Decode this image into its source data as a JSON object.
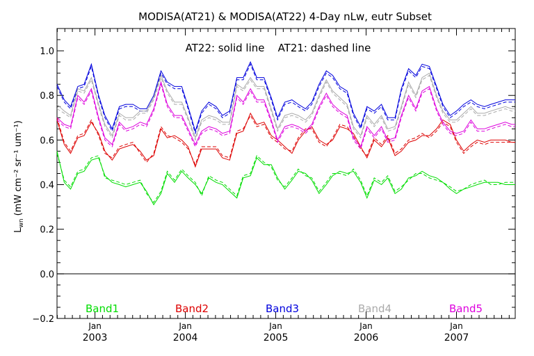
{
  "chart_data": {
    "type": "line",
    "title": "MODISA(AT21) & MODISA(AT22) 4-Day nLw, eutr Subset",
    "annotation": "AT22: solid line    AT21: dashed line",
    "ylabel_main": "L",
    "ylabel_sub": "wn",
    "ylabel_units": "(mW cm",
    "ylabel_units_full": "(mW cm⁻² sr⁻¹ um⁻¹)",
    "ylim": [
      -0.2,
      1.1
    ],
    "yticks": [
      "−0.2",
      "0.0",
      "0.2",
      "0.4",
      "0.6",
      "0.8",
      "1.0"
    ],
    "yticks_values": [
      -0.2,
      0.0,
      0.2,
      0.4,
      0.6,
      0.8,
      1.0
    ],
    "xlim": [
      2002.58,
      2007.65
    ],
    "xticks_month": [
      "Jan",
      "Jan",
      "Jan",
      "Jan",
      "Jan"
    ],
    "xticks_year": [
      "2003",
      "2004",
      "2005",
      "2006",
      "2007"
    ],
    "xticks_values": [
      2003.0,
      2004.0,
      2005.0,
      2006.0,
      2007.0
    ],
    "zero_line": true,
    "grid": false,
    "x": [
      2002.58,
      2002.66,
      2002.73,
      2002.81,
      2002.88,
      2002.96,
      2003.04,
      2003.11,
      2003.19,
      2003.27,
      2003.34,
      2003.42,
      2003.5,
      2003.57,
      2003.65,
      2003.73,
      2003.8,
      2003.88,
      2003.96,
      2004.03,
      2004.11,
      2004.18,
      2004.26,
      2004.34,
      2004.41,
      2004.49,
      2004.57,
      2004.64,
      2004.72,
      2004.79,
      2004.87,
      2004.95,
      2005.02,
      2005.1,
      2005.18,
      2005.25,
      2005.33,
      2005.4,
      2005.48,
      2005.56,
      2005.63,
      2005.71,
      2005.79,
      2005.86,
      2005.94,
      2006.01,
      2006.09,
      2006.17,
      2006.24,
      2006.32,
      2006.39,
      2006.47,
      2006.55,
      2006.62,
      2006.7,
      2006.78,
      2006.85,
      2006.93,
      2007.0,
      2007.08,
      2007.16,
      2007.23,
      2007.31,
      2007.38,
      2007.46,
      2007.54,
      2007.61,
      2007.65
    ],
    "series": [
      {
        "name": "Band1",
        "color": "#00dd00",
        "values_at22": [
          0.55,
          0.41,
          0.38,
          0.45,
          0.46,
          0.51,
          0.52,
          0.44,
          0.41,
          0.4,
          0.39,
          0.4,
          0.41,
          0.37,
          0.31,
          0.36,
          0.45,
          0.41,
          0.46,
          0.43,
          0.4,
          0.36,
          0.43,
          0.41,
          0.4,
          0.37,
          0.34,
          0.43,
          0.44,
          0.52,
          0.49,
          0.49,
          0.43,
          0.38,
          0.42,
          0.46,
          0.45,
          0.42,
          0.36,
          0.4,
          0.44,
          0.46,
          0.45,
          0.46,
          0.41,
          0.34,
          0.42,
          0.4,
          0.43,
          0.36,
          0.38,
          0.43,
          0.44,
          0.46,
          0.44,
          0.43,
          0.41,
          0.38,
          0.36,
          0.38,
          0.39,
          0.4,
          0.41,
          0.41,
          0.41,
          0.4,
          0.4,
          0.4
        ],
        "values_at21": [
          0.54,
          0.42,
          0.39,
          0.46,
          0.47,
          0.52,
          0.53,
          0.43,
          0.42,
          0.41,
          0.4,
          0.41,
          0.42,
          0.36,
          0.32,
          0.37,
          0.46,
          0.42,
          0.47,
          0.44,
          0.41,
          0.35,
          0.44,
          0.42,
          0.41,
          0.38,
          0.35,
          0.44,
          0.45,
          0.53,
          0.5,
          0.48,
          0.42,
          0.39,
          0.43,
          0.47,
          0.44,
          0.43,
          0.37,
          0.41,
          0.45,
          0.45,
          0.44,
          0.47,
          0.42,
          0.35,
          0.43,
          0.41,
          0.44,
          0.37,
          0.39,
          0.42,
          0.45,
          0.45,
          0.43,
          0.42,
          0.41,
          0.39,
          0.37,
          0.38,
          0.4,
          0.41,
          0.42,
          0.4,
          0.4,
          0.41,
          0.41,
          0.41
        ]
      },
      {
        "name": "Band2",
        "color": "#dd0000",
        "values_at22": [
          0.69,
          0.58,
          0.54,
          0.61,
          0.62,
          0.68,
          0.63,
          0.55,
          0.51,
          0.56,
          0.57,
          0.58,
          0.55,
          0.51,
          0.53,
          0.65,
          0.61,
          0.62,
          0.6,
          0.57,
          0.48,
          0.56,
          0.56,
          0.56,
          0.52,
          0.51,
          0.63,
          0.64,
          0.72,
          0.67,
          0.68,
          0.62,
          0.6,
          0.57,
          0.54,
          0.6,
          0.64,
          0.66,
          0.6,
          0.58,
          0.6,
          0.66,
          0.65,
          0.63,
          0.57,
          0.52,
          0.6,
          0.57,
          0.61,
          0.53,
          0.55,
          0.59,
          0.6,
          0.62,
          0.62,
          0.65,
          0.69,
          0.67,
          0.6,
          0.55,
          0.58,
          0.6,
          0.59,
          0.6,
          0.6,
          0.6,
          0.59,
          0.59
        ],
        "values_at21": [
          0.7,
          0.59,
          0.55,
          0.62,
          0.63,
          0.69,
          0.62,
          0.54,
          0.52,
          0.57,
          0.58,
          0.59,
          0.54,
          0.5,
          0.54,
          0.66,
          0.62,
          0.61,
          0.59,
          0.56,
          0.49,
          0.57,
          0.57,
          0.57,
          0.53,
          0.52,
          0.64,
          0.65,
          0.71,
          0.66,
          0.67,
          0.61,
          0.59,
          0.56,
          0.55,
          0.61,
          0.65,
          0.65,
          0.59,
          0.57,
          0.61,
          0.67,
          0.66,
          0.62,
          0.56,
          0.53,
          0.61,
          0.58,
          0.62,
          0.54,
          0.56,
          0.6,
          0.61,
          0.63,
          0.61,
          0.64,
          0.68,
          0.66,
          0.59,
          0.54,
          0.57,
          0.59,
          0.58,
          0.59,
          0.59,
          0.59,
          0.59,
          0.59
        ]
      },
      {
        "name": "Band3",
        "color": "#0000dd",
        "values_at22": [
          0.85,
          0.78,
          0.75,
          0.84,
          0.85,
          0.94,
          0.8,
          0.71,
          0.65,
          0.75,
          0.76,
          0.76,
          0.74,
          0.74,
          0.8,
          0.91,
          0.86,
          0.84,
          0.84,
          0.75,
          0.64,
          0.73,
          0.77,
          0.75,
          0.71,
          0.73,
          0.88,
          0.88,
          0.95,
          0.88,
          0.88,
          0.79,
          0.7,
          0.77,
          0.78,
          0.76,
          0.74,
          0.77,
          0.85,
          0.91,
          0.89,
          0.84,
          0.82,
          0.72,
          0.66,
          0.75,
          0.73,
          0.76,
          0.7,
          0.7,
          0.83,
          0.92,
          0.89,
          0.94,
          0.93,
          0.84,
          0.76,
          0.71,
          0.73,
          0.76,
          0.78,
          0.76,
          0.75,
          0.76,
          0.77,
          0.78,
          0.78,
          0.78
        ],
        "values_at21": [
          0.84,
          0.77,
          0.74,
          0.83,
          0.84,
          0.93,
          0.79,
          0.7,
          0.64,
          0.74,
          0.75,
          0.75,
          0.73,
          0.73,
          0.79,
          0.9,
          0.85,
          0.83,
          0.83,
          0.74,
          0.63,
          0.72,
          0.76,
          0.74,
          0.7,
          0.72,
          0.87,
          0.87,
          0.94,
          0.87,
          0.87,
          0.78,
          0.69,
          0.76,
          0.77,
          0.75,
          0.73,
          0.76,
          0.84,
          0.9,
          0.88,
          0.83,
          0.81,
          0.71,
          0.65,
          0.74,
          0.72,
          0.75,
          0.69,
          0.69,
          0.82,
          0.91,
          0.88,
          0.93,
          0.92,
          0.83,
          0.75,
          0.7,
          0.72,
          0.75,
          0.77,
          0.75,
          0.74,
          0.75,
          0.76,
          0.77,
          0.77,
          0.77
        ]
      },
      {
        "name": "Band4",
        "color": "#aaaaaa",
        "values_at22": [
          0.76,
          0.73,
          0.71,
          0.83,
          0.82,
          0.88,
          0.76,
          0.67,
          0.62,
          0.72,
          0.7,
          0.7,
          0.73,
          0.73,
          0.79,
          0.89,
          0.82,
          0.77,
          0.77,
          0.7,
          0.61,
          0.69,
          0.71,
          0.7,
          0.68,
          0.68,
          0.85,
          0.83,
          0.88,
          0.84,
          0.84,
          0.74,
          0.65,
          0.71,
          0.72,
          0.71,
          0.69,
          0.72,
          0.8,
          0.87,
          0.82,
          0.79,
          0.76,
          0.66,
          0.62,
          0.71,
          0.67,
          0.71,
          0.65,
          0.66,
          0.75,
          0.86,
          0.8,
          0.88,
          0.9,
          0.8,
          0.73,
          0.69,
          0.69,
          0.72,
          0.75,
          0.72,
          0.72,
          0.73,
          0.74,
          0.75,
          0.74,
          0.74
        ],
        "values_at21": [
          0.74,
          0.72,
          0.7,
          0.82,
          0.81,
          0.87,
          0.75,
          0.66,
          0.61,
          0.71,
          0.69,
          0.69,
          0.72,
          0.72,
          0.78,
          0.88,
          0.81,
          0.76,
          0.76,
          0.69,
          0.6,
          0.68,
          0.7,
          0.69,
          0.67,
          0.67,
          0.84,
          0.82,
          0.87,
          0.83,
          0.83,
          0.73,
          0.64,
          0.7,
          0.71,
          0.7,
          0.68,
          0.71,
          0.79,
          0.86,
          0.81,
          0.78,
          0.75,
          0.65,
          0.61,
          0.7,
          0.66,
          0.7,
          0.64,
          0.65,
          0.74,
          0.85,
          0.79,
          0.87,
          0.89,
          0.79,
          0.72,
          0.68,
          0.68,
          0.71,
          0.74,
          0.71,
          0.71,
          0.72,
          0.73,
          0.74,
          0.73,
          0.73
        ]
      },
      {
        "name": "Band5",
        "color": "#dd00dd",
        "values_at22": [
          0.7,
          0.67,
          0.66,
          0.8,
          0.77,
          0.83,
          0.7,
          0.61,
          0.58,
          0.68,
          0.65,
          0.66,
          0.68,
          0.67,
          0.74,
          0.86,
          0.76,
          0.71,
          0.71,
          0.65,
          0.58,
          0.64,
          0.66,
          0.65,
          0.63,
          0.64,
          0.8,
          0.77,
          0.83,
          0.78,
          0.78,
          0.69,
          0.6,
          0.66,
          0.67,
          0.66,
          0.64,
          0.67,
          0.75,
          0.81,
          0.76,
          0.73,
          0.71,
          0.61,
          0.57,
          0.66,
          0.62,
          0.66,
          0.6,
          0.61,
          0.71,
          0.8,
          0.74,
          0.82,
          0.84,
          0.74,
          0.68,
          0.64,
          0.63,
          0.64,
          0.69,
          0.65,
          0.65,
          0.66,
          0.67,
          0.68,
          0.67,
          0.67
        ],
        "values_at21": [
          0.69,
          0.66,
          0.65,
          0.79,
          0.76,
          0.82,
          0.69,
          0.6,
          0.57,
          0.67,
          0.64,
          0.65,
          0.67,
          0.66,
          0.73,
          0.85,
          0.75,
          0.7,
          0.7,
          0.64,
          0.57,
          0.63,
          0.65,
          0.64,
          0.62,
          0.63,
          0.79,
          0.76,
          0.82,
          0.77,
          0.77,
          0.68,
          0.59,
          0.65,
          0.66,
          0.65,
          0.63,
          0.66,
          0.74,
          0.8,
          0.75,
          0.72,
          0.7,
          0.6,
          0.56,
          0.65,
          0.61,
          0.65,
          0.59,
          0.6,
          0.7,
          0.79,
          0.73,
          0.81,
          0.83,
          0.73,
          0.67,
          0.63,
          0.62,
          0.63,
          0.68,
          0.64,
          0.64,
          0.65,
          0.66,
          0.67,
          0.66,
          0.66
        ]
      }
    ]
  }
}
